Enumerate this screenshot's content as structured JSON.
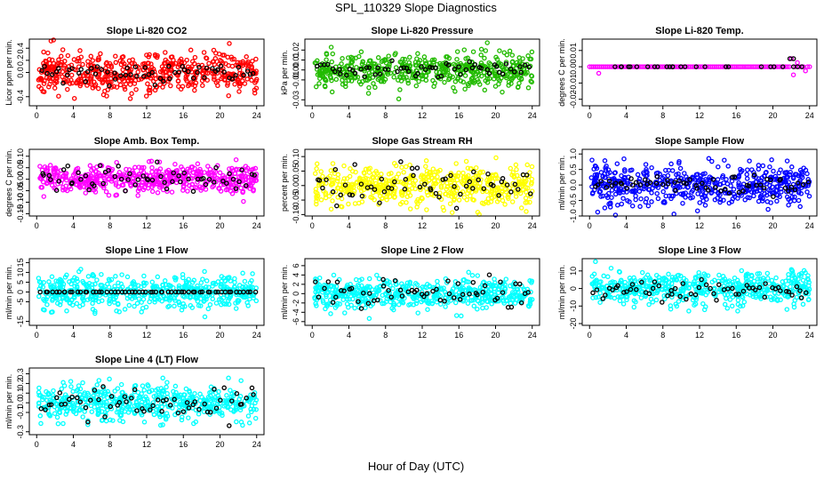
{
  "page_title": "SPL_110329  Slope Diagnostics",
  "x_axis_title": "Hour of Day (UTC)",
  "colors": {
    "co2": "#ff0000",
    "pressure": "#22bb00",
    "temp": "#ff00ff",
    "box_temp": "#ff00ff",
    "rh": "#ffff00",
    "sample_flow": "#0000ff",
    "line_flow": "#00ffff",
    "reference": "#000000"
  },
  "chart_data": [
    {
      "type": "scatter",
      "id": "co2",
      "title": "Slope Li-820 CO2",
      "ylabel": "Licor ppm per min.",
      "ylim": [
        -0.55,
        0.55
      ],
      "yticks": [
        -0.4,
        0.0,
        0.2,
        0.4
      ],
      "ytick_labels": [
        "-0.4",
        "0.0",
        "0.2",
        "0.4"
      ],
      "xlim": [
        -0.8,
        24.8
      ],
      "xticks": [
        0,
        4,
        8,
        12,
        16,
        20,
        24
      ],
      "xtick_labels": [
        "0",
        "4",
        "8",
        "12",
        "16",
        "20",
        "24"
      ],
      "color_key": "co2",
      "mode": "noise",
      "spread": 0.17,
      "black_spread": 0.1,
      "n": 520,
      "n_black": 60,
      "seed": 11
    },
    {
      "type": "scatter",
      "id": "pressure",
      "title": "Slope Li-820 Pressure",
      "ylabel": "kPa per min.",
      "ylim": [
        -0.036,
        0.031
      ],
      "yticks": [
        -0.03,
        -0.01,
        0.0,
        0.01,
        0.02
      ],
      "ytick_labels": [
        "-0.03",
        "-0.01",
        "0.00",
        "0.01",
        "0.02"
      ],
      "xlim": [
        -0.8,
        24.8
      ],
      "xticks": [
        0,
        4,
        8,
        12,
        16,
        20,
        24
      ],
      "xtick_labels": [
        "0",
        "4",
        "8",
        "12",
        "16",
        "20",
        "24"
      ],
      "color_key": "pressure",
      "mode": "noise",
      "spread": 0.008,
      "black_spread": 0.004,
      "n": 520,
      "n_black": 60,
      "seed": 23
    },
    {
      "type": "scatter",
      "id": "temp",
      "title": "Slope Li-820 Temp.",
      "ylabel": "degrees C per min.",
      "ylim": [
        -0.024,
        0.017
      ],
      "yticks": [
        -0.02,
        -0.01,
        0.0,
        0.01
      ],
      "ytick_labels": [
        "-0.02",
        "-0.01",
        "0.00",
        "0.01"
      ],
      "xlim": [
        -0.8,
        24.8
      ],
      "xticks": [
        0,
        4,
        8,
        12,
        16,
        20,
        24
      ],
      "xtick_labels": [
        "0",
        "4",
        "8",
        "12",
        "16",
        "20",
        "24"
      ],
      "color_key": "temp",
      "mode": "quantized",
      "quantum": 0.0025,
      "active_from": 21,
      "n": 520,
      "n_black": 30,
      "seed": 37
    },
    {
      "type": "scatter",
      "id": "box_temp",
      "title": "Slope Amb. Box Temp.",
      "ylabel": "degrees C per min.",
      "ylim": [
        -0.16,
        0.13
      ],
      "yticks": [
        -0.15,
        -0.1,
        -0.05,
        0.0,
        0.05,
        0.1
      ],
      "ytick_labels": [
        "-0.15",
        "-0.10",
        "-0.05",
        "0.00",
        "0.05",
        "0.10"
      ],
      "xlim": [
        -0.8,
        24.8
      ],
      "xticks": [
        0,
        4,
        8,
        12,
        16,
        20,
        24
      ],
      "xtick_labels": [
        "0",
        "4",
        "8",
        "12",
        "16",
        "20",
        "24"
      ],
      "color_key": "box_temp",
      "mode": "noise",
      "spread": 0.03,
      "black_spread": 0.025,
      "n": 520,
      "n_black": 60,
      "seed": 41
    },
    {
      "type": "scatter",
      "id": "rh",
      "title": "Slope Gas Stream RH",
      "ylabel": "percent per min.",
      "ylim": [
        -0.105,
        0.125
      ],
      "yticks": [
        -0.1,
        -0.05,
        0.0,
        0.05,
        0.1
      ],
      "ytick_labels": [
        "-0.10",
        "-0.05",
        "0.00",
        "0.05",
        "0.10"
      ],
      "xlim": [
        -0.8,
        24.8
      ],
      "xticks": [
        0,
        4,
        8,
        12,
        16,
        20,
        24
      ],
      "xtick_labels": [
        "0",
        "4",
        "8",
        "12",
        "16",
        "20",
        "24"
      ],
      "color_key": "rh",
      "mode": "noise",
      "spread": 0.035,
      "black_spread": 0.03,
      "n": 520,
      "n_black": 60,
      "seed": 53
    },
    {
      "type": "scatter",
      "id": "sample_flow",
      "title": "Slope Sample Flow",
      "ylabel": "ml/min per min.",
      "ylim": [
        -1.0,
        1.15
      ],
      "yticks": [
        -1.0,
        -0.5,
        0.0,
        0.5,
        1.0
      ],
      "ytick_labels": [
        "-1.0",
        "-0.5",
        "0.0",
        "0.5",
        "1.0"
      ],
      "xlim": [
        -0.8,
        24.8
      ],
      "xticks": [
        0,
        4,
        8,
        12,
        16,
        20,
        24
      ],
      "xtick_labels": [
        "0",
        "4",
        "8",
        "12",
        "16",
        "20",
        "24"
      ],
      "color_key": "sample_flow",
      "mode": "noise",
      "spread": 0.3,
      "black_spread": 0.15,
      "n": 520,
      "n_black": 60,
      "seed": 67
    },
    {
      "type": "scatter",
      "id": "line1",
      "title": "Slope Line 1 Flow",
      "ylabel": "ml/min per min.",
      "ylim": [
        -17,
        17
      ],
      "yticks": [
        -15,
        -5,
        0,
        5,
        10,
        15
      ],
      "ytick_labels": [
        "-15",
        "-5",
        "0",
        "5",
        "10",
        "15"
      ],
      "xlim": [
        -0.8,
        24.8
      ],
      "xticks": [
        0,
        4,
        8,
        12,
        16,
        20,
        24
      ],
      "xtick_labels": [
        "0",
        "4",
        "8",
        "12",
        "16",
        "20",
        "24"
      ],
      "color_key": "line_flow",
      "mode": "noise",
      "spread": 4,
      "black_spread": 0.02,
      "n": 520,
      "n_black": 60,
      "seed": 71
    },
    {
      "type": "scatter",
      "id": "line2",
      "title": "Slope Line 2 Flow",
      "ylabel": "ml/min per min.",
      "ylim": [
        -6.8,
        7.5
      ],
      "yticks": [
        -6,
        -4,
        -2,
        0,
        2,
        4,
        6
      ],
      "ytick_labels": [
        "-6",
        "-4",
        "-2",
        "0",
        "2",
        "4",
        "6"
      ],
      "xlim": [
        -0.8,
        24.8
      ],
      "xticks": [
        0,
        4,
        8,
        12,
        16,
        20,
        24
      ],
      "xtick_labels": [
        "0",
        "4",
        "8",
        "12",
        "16",
        "20",
        "24"
      ],
      "color_key": "line_flow",
      "mode": "noise",
      "spread": 1.6,
      "black_spread": 1.6,
      "n": 520,
      "n_black": 60,
      "seed": 83
    },
    {
      "type": "scatter",
      "id": "line3",
      "title": "Slope Line 3 Flow",
      "ylabel": "ml/min per min.",
      "ylim": [
        -21,
        17
      ],
      "yticks": [
        -20,
        -10,
        0,
        10
      ],
      "ytick_labels": [
        "-20",
        "-10",
        "0",
        "10"
      ],
      "xlim": [
        -0.8,
        24.8
      ],
      "xticks": [
        0,
        4,
        8,
        12,
        16,
        20,
        24
      ],
      "xtick_labels": [
        "0",
        "4",
        "8",
        "12",
        "16",
        "20",
        "24"
      ],
      "color_key": "line_flow",
      "mode": "noise",
      "spread": 5,
      "black_spread": 3,
      "n": 520,
      "n_black": 60,
      "seed": 97
    },
    {
      "type": "scatter",
      "id": "line4",
      "title": "Slope Line 4 (LT) Flow",
      "ylabel": "ml/min per min.",
      "ylim": [
        -0.33,
        0.36
      ],
      "yticks": [
        -0.3,
        -0.1,
        0.0,
        0.1,
        0.2,
        0.3
      ],
      "ytick_labels": [
        "-0.3",
        "-0.1",
        "0.0",
        "0.1",
        "0.2",
        "0.3"
      ],
      "xlim": [
        -0.8,
        24.8
      ],
      "xticks": [
        0,
        4,
        8,
        12,
        16,
        20,
        24
      ],
      "xtick_labels": [
        "0",
        "4",
        "8",
        "12",
        "16",
        "20",
        "24"
      ],
      "color_key": "line_flow",
      "mode": "noise",
      "spread": 0.09,
      "black_spread": 0.09,
      "n": 520,
      "n_black": 60,
      "seed": 101
    }
  ]
}
